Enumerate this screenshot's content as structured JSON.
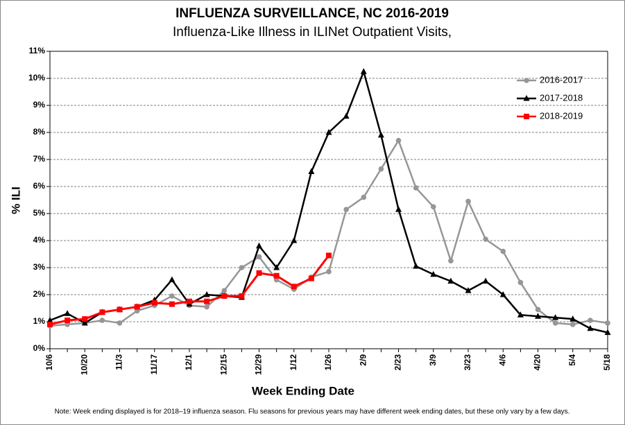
{
  "chart_data": {
    "type": "line",
    "title": "INFLUENZA SURVEILLANCE, NC 2016-2019",
    "subtitle": "Influenza-Like Illness in ILINet  Outpatient Visits,",
    "y_label": "% ILI",
    "x_label": "Week Ending Date",
    "note": "Note:  Week ending displayed is for 2018–19 influenza season. Flu seasons for previous years may have different week ending dates, but these only vary by a few days.",
    "categories": [
      "10/6",
      null,
      "10/20",
      null,
      "11/3",
      null,
      "11/17",
      null,
      "12/1",
      null,
      "12/15",
      null,
      "12/29",
      null,
      "1/12",
      null,
      "1/26",
      null,
      "2/9",
      null,
      "2/23",
      null,
      "3/9",
      null,
      "3/23",
      null,
      "4/6",
      null,
      "4/20",
      null,
      "5/4",
      null,
      "5/18"
    ],
    "series": [
      {
        "name": "2016-2017",
        "color": "#969696",
        "marker": "circle",
        "values": [
          0.85,
          0.9,
          0.95,
          1.05,
          0.95,
          1.4,
          1.6,
          1.95,
          1.6,
          1.55,
          2.15,
          3.0,
          3.4,
          2.55,
          2.2,
          2.65,
          2.85,
          5.15,
          5.6,
          6.65,
          7.7,
          5.95,
          5.25,
          3.25,
          5.45,
          4.05,
          3.6,
          2.45,
          1.45,
          0.95,
          0.9,
          1.05,
          0.95
        ]
      },
      {
        "name": "2017-2018",
        "color": "#000000",
        "marker": "triangle",
        "values": [
          1.05,
          1.3,
          0.95,
          1.35,
          1.45,
          1.55,
          1.8,
          2.55,
          1.65,
          2.0,
          1.95,
          1.9,
          3.8,
          3.0,
          4.0,
          6.55,
          8.0,
          8.6,
          10.25,
          7.9,
          5.15,
          3.05,
          2.75,
          2.5,
          2.15,
          2.5,
          2.0,
          1.25,
          1.2,
          1.15,
          1.1,
          0.75,
          0.6
        ]
      },
      {
        "name": "2018-2019",
        "color": "#ff0000",
        "marker": "square",
        "values": [
          0.9,
          1.05,
          1.1,
          1.35,
          1.45,
          1.55,
          1.7,
          1.65,
          1.75,
          1.75,
          1.95,
          1.95,
          2.8,
          2.7,
          2.3,
          2.6,
          3.45,
          null,
          null,
          null,
          null,
          null,
          null,
          null,
          null,
          null,
          null,
          null,
          null,
          null,
          null,
          null,
          null
        ]
      }
    ],
    "ylim": [
      0,
      11
    ],
    "yticks": [
      {
        "value": 0,
        "label": "0%"
      },
      {
        "value": 1,
        "label": "1%"
      },
      {
        "value": 2,
        "label": "2%"
      },
      {
        "value": 3,
        "label": "3%"
      },
      {
        "value": 4,
        "label": "4%"
      },
      {
        "value": 5,
        "label": "5%"
      },
      {
        "value": 6,
        "label": "6%"
      },
      {
        "value": 7,
        "label": "7%"
      },
      {
        "value": 8,
        "label": "8%"
      },
      {
        "value": 9,
        "label": "9%"
      },
      {
        "value": 10,
        "label": "10%"
      },
      {
        "value": 11,
        "label": "11%"
      }
    ],
    "grid": true,
    "legend": "upper right"
  }
}
